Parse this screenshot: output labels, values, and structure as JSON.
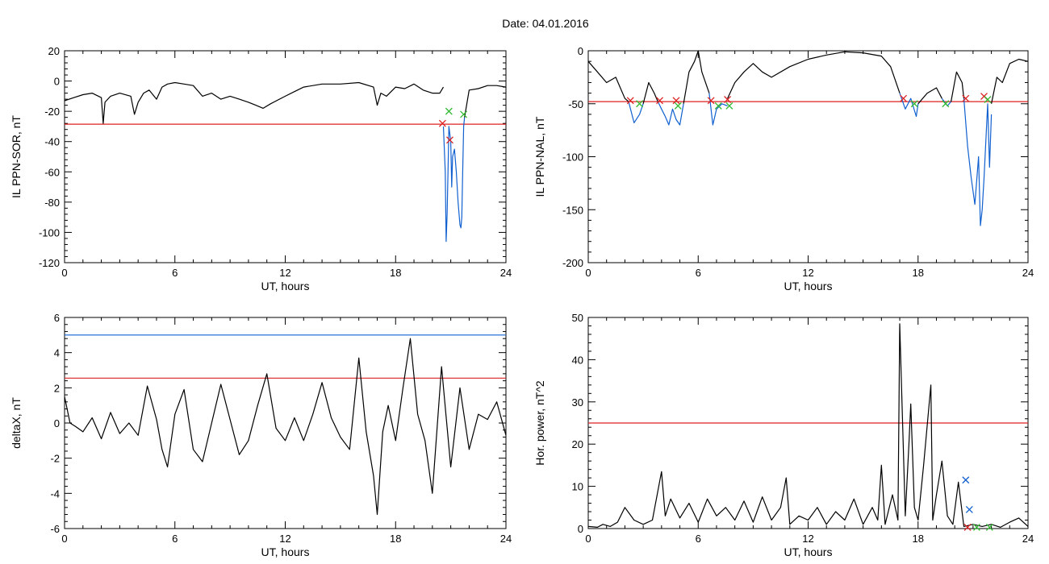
{
  "title": "Date:  04.01.2016",
  "chart_data": [
    {
      "type": "line",
      "title": "",
      "xlabel": "UT, hours",
      "ylabel": "IL PPN-SOR, nT",
      "xlim": [
        0,
        24
      ],
      "ylim": [
        -120,
        20
      ],
      "xticks": [
        0,
        6,
        12,
        18,
        24
      ],
      "yticks": [
        -120,
        -100,
        -80,
        -60,
        -40,
        -20,
        0,
        20
      ],
      "grid": false,
      "series": [
        {
          "color": "#000000",
          "x": [
            0,
            0.5,
            1,
            1.5,
            2.0,
            2.1,
            2.2,
            2.5,
            3,
            3.6,
            3.8,
            4.0,
            4.3,
            4.6,
            5,
            5.3,
            5.6,
            6,
            6.5,
            7,
            7.5,
            8,
            8.5,
            9,
            9.5,
            10,
            10.4,
            10.8,
            11.2,
            12,
            12.5,
            13,
            14,
            15,
            16,
            16.8,
            17.0,
            17.2,
            17.5,
            18,
            18.5,
            19,
            19.5,
            20,
            20.4,
            20.6
          ],
          "y": [
            -13,
            -11,
            -9,
            -8,
            -11,
            -28,
            -14,
            -10,
            -8,
            -10,
            -22,
            -14,
            -8,
            -6,
            -12,
            -4,
            -2,
            -1,
            -2,
            -3,
            -10,
            -8,
            -12,
            -10,
            -12,
            -14,
            -16,
            -18,
            -15,
            -10,
            -7,
            -4,
            -2,
            -2,
            -1,
            -4,
            -16,
            -8,
            -10,
            -4,
            -5,
            -2,
            -6,
            -8,
            -8,
            -4
          ]
        },
        {
          "color": "#1060d0",
          "x": [
            20.6,
            20.7,
            20.75,
            20.8,
            20.85,
            20.9,
            21.0,
            21.05,
            21.1,
            21.2,
            21.3,
            21.4,
            21.5,
            21.55,
            21.6,
            21.65,
            21.7,
            21.75
          ],
          "y": [
            -30,
            -60,
            -106,
            -88,
            -60,
            -30,
            -40,
            -70,
            -50,
            -45,
            -60,
            -80,
            -95,
            -97,
            -90,
            -60,
            -30,
            -24
          ]
        },
        {
          "color": "#000000",
          "x": [
            21.75,
            22,
            22.5,
            23,
            23.5,
            24
          ],
          "y": [
            -24,
            -6,
            -5,
            -3,
            -3,
            -4
          ]
        }
      ],
      "hlines": [
        {
          "y": -28.5,
          "color": "#dd2020"
        }
      ],
      "markers": [
        {
          "x": 20.55,
          "y": -28,
          "color": "#dd2020",
          "shape": "x"
        },
        {
          "x": 20.95,
          "y": -39,
          "color": "#dd2020",
          "shape": "x"
        },
        {
          "x": 20.9,
          "y": -20,
          "color": "#33bb33",
          "shape": "x"
        },
        {
          "x": 21.7,
          "y": -22,
          "color": "#33bb33",
          "shape": "x"
        }
      ]
    },
    {
      "type": "line",
      "title": "",
      "xlabel": "UT, hours",
      "ylabel": "IL PPN-NAL, nT",
      "xlim": [
        0,
        24
      ],
      "ylim": [
        -200,
        0
      ],
      "xticks": [
        0,
        6,
        12,
        18,
        24
      ],
      "yticks": [
        -200,
        -150,
        -100,
        -50,
        0
      ],
      "grid": false,
      "series": [
        {
          "color": "#000000",
          "x": [
            0,
            0.5,
            1,
            1.5,
            2,
            2.2
          ],
          "y": [
            -10,
            -20,
            -30,
            -25,
            -45,
            -48
          ]
        },
        {
          "color": "#1060d0",
          "x": [
            2.2,
            2.5,
            2.8,
            3.0
          ],
          "y": [
            -48,
            -68,
            -60,
            -50
          ]
        },
        {
          "color": "#000000",
          "x": [
            3.0,
            3.3,
            3.6,
            3.8
          ],
          "y": [
            -50,
            -30,
            -40,
            -48
          ]
        },
        {
          "color": "#1060d0",
          "x": [
            3.8,
            4.0,
            4.2,
            4.4,
            4.6,
            4.8,
            5.0,
            5.2
          ],
          "y": [
            -48,
            -55,
            -62,
            -70,
            -55,
            -65,
            -70,
            -50
          ]
        },
        {
          "color": "#000000",
          "x": [
            5.2,
            5.5,
            5.8,
            6.0,
            6.2,
            6.6
          ],
          "y": [
            -50,
            -20,
            -10,
            0,
            -20,
            -40
          ]
        },
        {
          "color": "#1060d0",
          "x": [
            6.6,
            6.8,
            7.0,
            7.3,
            7.6
          ],
          "y": [
            -40,
            -70,
            -55,
            -50,
            -52
          ]
        },
        {
          "color": "#000000",
          "x": [
            7.6,
            8,
            8.5,
            9,
            9.5,
            10,
            11,
            12,
            13,
            14,
            15,
            16,
            16.5,
            17.0
          ],
          "y": [
            -45,
            -30,
            -20,
            -12,
            -20,
            -25,
            -15,
            -8,
            -4,
            -1,
            -2,
            -5,
            -15,
            -40
          ]
        },
        {
          "color": "#1060d0",
          "x": [
            17.0,
            17.3,
            17.6,
            17.9,
            18.0
          ],
          "y": [
            -40,
            -55,
            -45,
            -62,
            -50
          ]
        },
        {
          "color": "#000000",
          "x": [
            18.0,
            18.5,
            19.0,
            19.3
          ],
          "y": [
            -50,
            -40,
            -35,
            -45
          ]
        },
        {
          "color": "#1060d0",
          "x": [
            19.3,
            19.6,
            19.8
          ],
          "y": [
            -45,
            -52,
            -48
          ]
        },
        {
          "color": "#000000",
          "x": [
            19.8,
            20.1,
            20.4,
            20.5
          ],
          "y": [
            -48,
            -20,
            -30,
            -45
          ]
        },
        {
          "color": "#1060d0",
          "x": [
            20.5,
            20.7,
            20.9,
            21.1,
            21.3,
            21.4,
            21.5,
            21.6,
            21.8,
            21.9,
            22.0
          ],
          "y": [
            -45,
            -90,
            -120,
            -145,
            -100,
            -165,
            -150,
            -120,
            -50,
            -110,
            -60
          ]
        },
        {
          "color": "#000000",
          "x": [
            22.0,
            22.3,
            22.6,
            23.0,
            23.5,
            24
          ],
          "y": [
            -50,
            -25,
            -30,
            -12,
            -8,
            -10
          ]
        }
      ],
      "hlines": [
        {
          "y": -48,
          "color": "#dd2020"
        }
      ],
      "markers": [
        {
          "x": 2.3,
          "y": -47,
          "color": "#dd2020",
          "shape": "x"
        },
        {
          "x": 3.9,
          "y": -47,
          "color": "#dd2020",
          "shape": "x"
        },
        {
          "x": 4.8,
          "y": -47,
          "color": "#dd2020",
          "shape": "x"
        },
        {
          "x": 6.7,
          "y": -47,
          "color": "#dd2020",
          "shape": "x"
        },
        {
          "x": 7.6,
          "y": -46,
          "color": "#dd2020",
          "shape": "x"
        },
        {
          "x": 17.2,
          "y": -45,
          "color": "#dd2020",
          "shape": "x"
        },
        {
          "x": 20.6,
          "y": -45,
          "color": "#dd2020",
          "shape": "x"
        },
        {
          "x": 21.6,
          "y": -43,
          "color": "#dd2020",
          "shape": "x"
        },
        {
          "x": 2.8,
          "y": -50,
          "color": "#33bb33",
          "shape": "x"
        },
        {
          "x": 4.9,
          "y": -52,
          "color": "#33bb33",
          "shape": "x"
        },
        {
          "x": 7.1,
          "y": -52,
          "color": "#33bb33",
          "shape": "x"
        },
        {
          "x": 7.7,
          "y": -52,
          "color": "#33bb33",
          "shape": "x"
        },
        {
          "x": 17.8,
          "y": -50,
          "color": "#33bb33",
          "shape": "x"
        },
        {
          "x": 19.5,
          "y": -50,
          "color": "#33bb33",
          "shape": "x"
        },
        {
          "x": 21.8,
          "y": -46,
          "color": "#33bb33",
          "shape": "x"
        }
      ]
    },
    {
      "type": "line",
      "title": "",
      "xlabel": "UT, hours",
      "ylabel": "deltaX, nT",
      "xlim": [
        0,
        24
      ],
      "ylim": [
        -6,
        6
      ],
      "xticks": [
        0,
        6,
        12,
        18,
        24
      ],
      "yticks": [
        -6,
        -4,
        -2,
        0,
        2,
        4,
        6
      ],
      "grid": false,
      "series": [
        {
          "color": "#000000",
          "x": [
            0,
            0.3,
            0.6,
            1.0,
            1.5,
            2.0,
            2.5,
            3.0,
            3.5,
            4.0,
            4.5,
            5.0,
            5.3,
            5.6,
            6.0,
            6.5,
            7.0,
            7.5,
            8.0,
            8.5,
            9.0,
            9.5,
            10.0,
            10.5,
            11.0,
            11.5,
            12.0,
            12.5,
            13.0,
            13.5,
            14.0,
            14.5,
            15.0,
            15.5,
            16.0,
            16.4,
            16.8,
            17.0,
            17.3,
            17.6,
            18.0,
            18.4,
            18.8,
            19.2,
            19.6,
            20.0,
            20.5,
            21.0,
            21.5,
            22.0,
            22.5,
            23.0,
            23.5,
            24
          ],
          "y": [
            1.5,
            0.0,
            -0.2,
            -0.5,
            0.3,
            -0.9,
            0.6,
            -0.6,
            0.0,
            -0.7,
            2.1,
            0.2,
            -1.5,
            -2.5,
            0.5,
            1.9,
            -1.5,
            -2.2,
            0.0,
            2.2,
            0.2,
            -1.8,
            -1.0,
            1.0,
            2.8,
            -0.3,
            -1.0,
            0.3,
            -1.0,
            0.5,
            2.3,
            0.3,
            -0.8,
            -1.5,
            3.7,
            -0.5,
            -3.0,
            -5.2,
            -0.5,
            1.0,
            -1.0,
            2.0,
            4.8,
            0.5,
            -1.0,
            -4.0,
            3.2,
            -2.5,
            2.0,
            -1.5,
            0.5,
            0.2,
            1.2,
            -0.7
          ]
        }
      ],
      "hlines": [
        {
          "y": 5.0,
          "color": "#1060d0"
        },
        {
          "y": 2.55,
          "color": "#dd2020"
        }
      ],
      "markers": []
    },
    {
      "type": "line",
      "title": "",
      "xlabel": "UT, hours",
      "ylabel": "Hor. power, nT^2",
      "xlim": [
        0,
        24
      ],
      "ylim": [
        0,
        50
      ],
      "xticks": [
        0,
        6,
        12,
        18,
        24
      ],
      "yticks": [
        0,
        10,
        20,
        30,
        40,
        50
      ],
      "grid": false,
      "series": [
        {
          "color": "#000000",
          "x": [
            0,
            0.5,
            0.8,
            1.2,
            1.6,
            2.0,
            2.5,
            3.0,
            3.5,
            4.0,
            4.2,
            4.5,
            5.0,
            5.5,
            6.0,
            6.5,
            7.0,
            7.5,
            8.0,
            8.5,
            9.0,
            9.5,
            10.0,
            10.5,
            10.8,
            11.0,
            11.5,
            12.0,
            12.5,
            13.0,
            13.5,
            14.0,
            14.5,
            15.0,
            15.5,
            15.8,
            16.0,
            16.2,
            16.6,
            16.9,
            17.0,
            17.3,
            17.5,
            17.6,
            17.8,
            18.0,
            18.3,
            18.7,
            18.8,
            19.0,
            19.3,
            19.6,
            19.9,
            20.2,
            20.5,
            21.0,
            21.5,
            22.0,
            22.5,
            23.0,
            23.5,
            24
          ],
          "y": [
            0.5,
            0.3,
            1.0,
            0.5,
            1.5,
            5.0,
            2.0,
            1.0,
            2.0,
            13.5,
            3.0,
            7.0,
            2.5,
            6.0,
            1.5,
            7.0,
            3.0,
            5.0,
            2.0,
            6.5,
            1.5,
            7.5,
            2.0,
            5.0,
            12.0,
            1.0,
            3.0,
            2.0,
            5.0,
            1.0,
            4.0,
            2.0,
            7.0,
            1.0,
            5.0,
            2.0,
            15.0,
            1.0,
            8.0,
            2.0,
            48.5,
            3.0,
            20.0,
            29.5,
            5.0,
            2.0,
            15.0,
            34.0,
            2.0,
            8.0,
            16.0,
            3.0,
            1.0,
            11.0,
            0.5,
            1.0,
            0.5,
            1.0,
            0.3,
            1.5,
            2.5,
            0.5
          ]
        }
      ],
      "hlines": [
        {
          "y": 25,
          "color": "#dd2020"
        }
      ],
      "markers": [
        {
          "x": 20.6,
          "y": 11.5,
          "color": "#1060d0",
          "shape": "x"
        },
        {
          "x": 20.8,
          "y": 4.5,
          "color": "#1060d0",
          "shape": "x"
        },
        {
          "x": 20.7,
          "y": 0.3,
          "color": "#dd2020",
          "shape": "x"
        },
        {
          "x": 21.2,
          "y": 0.3,
          "color": "#33bb33",
          "shape": "x"
        },
        {
          "x": 21.9,
          "y": 0.3,
          "color": "#33bb33",
          "shape": "x"
        }
      ]
    }
  ]
}
